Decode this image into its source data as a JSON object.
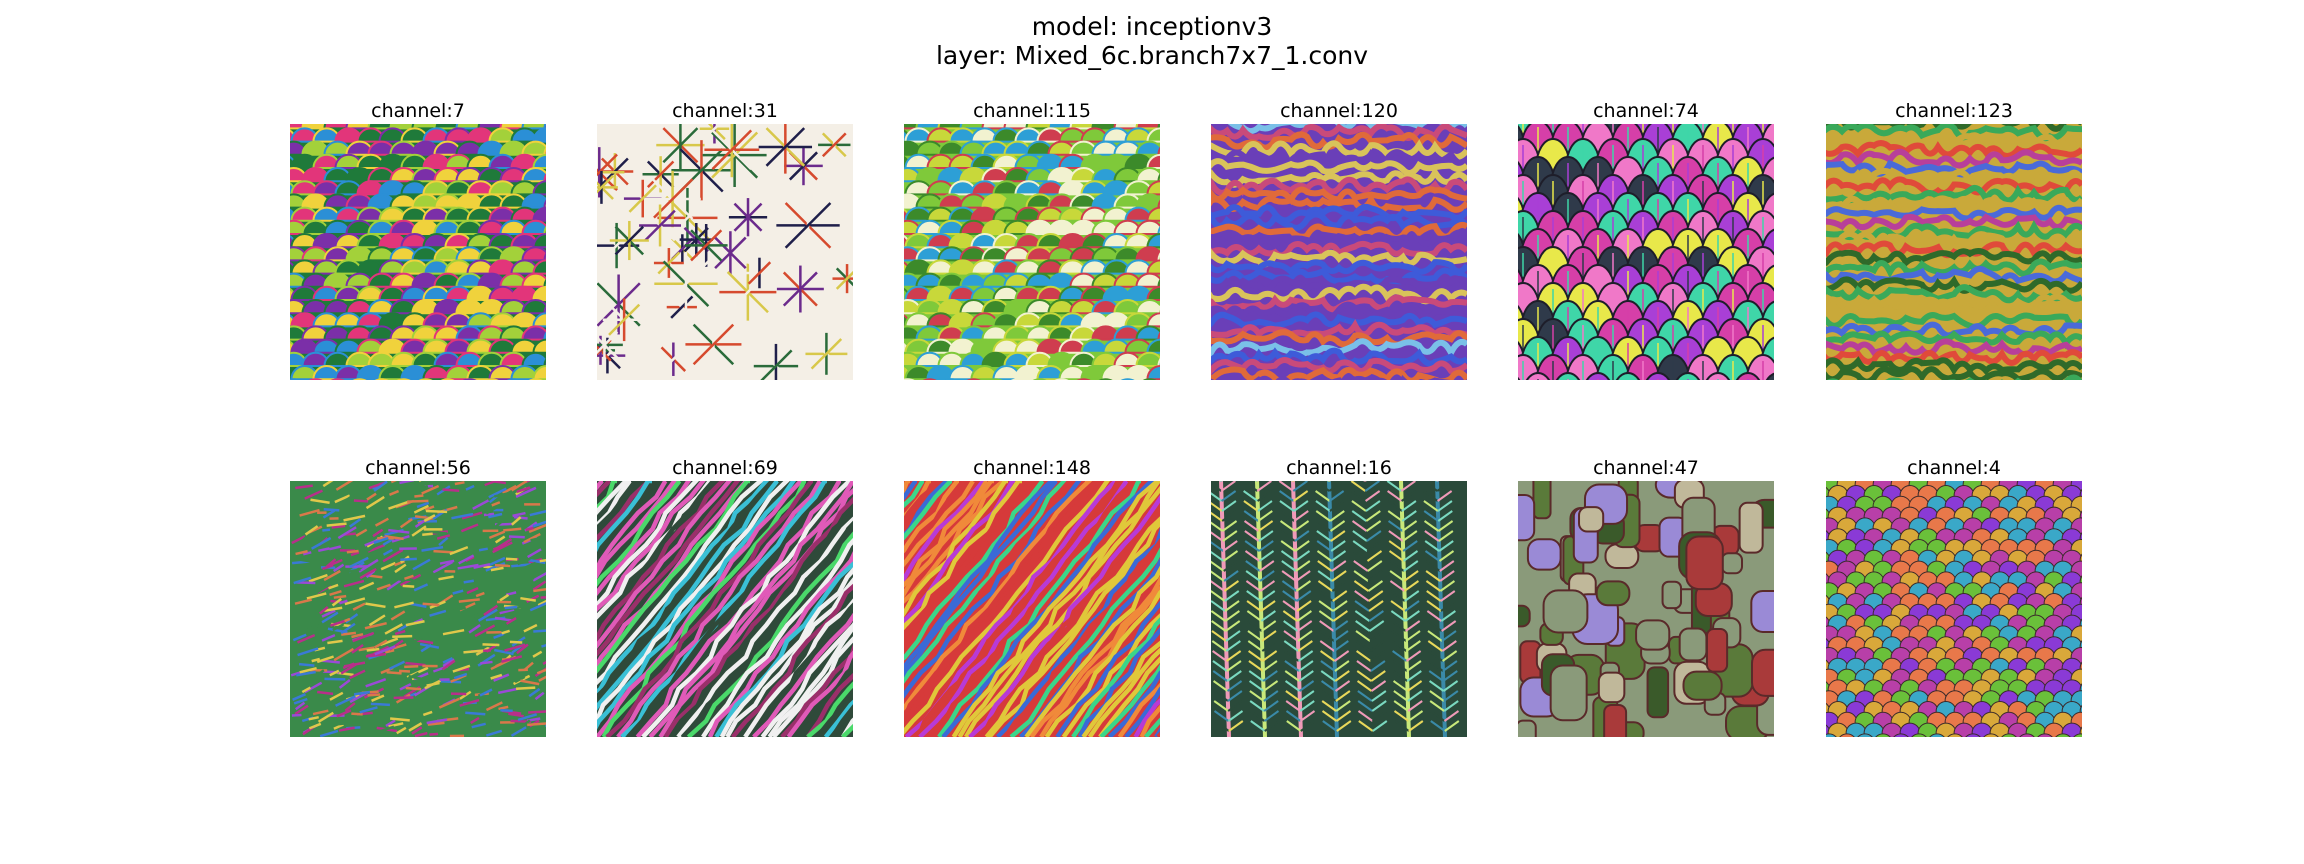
{
  "figure": {
    "title_line1": "model: inceptionv3",
    "title_line2": "layer: Mixed_6c.branch7x7_1.conv"
  },
  "panels": [
    {
      "label": "channel:7",
      "pattern": "scales",
      "colors": [
        "#1f7a3a",
        "#e2357a",
        "#2b8fd6",
        "#f0d23c",
        "#a3d13a",
        "#7b2fa8"
      ]
    },
    {
      "label": "channel:31",
      "pattern": "star-lattice",
      "colors": [
        "#f4efe6",
        "#2a6b3a",
        "#6b2a8c",
        "#1f1f4a",
        "#d64a2e",
        "#d8c84a"
      ]
    },
    {
      "label": "channel:115",
      "pattern": "scales",
      "colors": [
        "#7fc93a",
        "#3c8a2a",
        "#f2f2d0",
        "#2d9fd6",
        "#cf3d4f",
        "#c8d83a"
      ]
    },
    {
      "label": "channel:120",
      "pattern": "waves",
      "colors": [
        "#6a3fb8",
        "#d9c35a",
        "#3e5bd9",
        "#c94a7a",
        "#7ac0e8",
        "#e06a3a"
      ]
    },
    {
      "label": "channel:74",
      "pattern": "leaves",
      "colors": [
        "#d63fa8",
        "#3fd6a8",
        "#a93fd6",
        "#2f3a4a",
        "#e8e84a",
        "#f078c8"
      ]
    },
    {
      "label": "channel:123",
      "pattern": "waves",
      "colors": [
        "#c9a93a",
        "#3aa95a",
        "#b83f9a",
        "#4a6ad9",
        "#e04a3a",
        "#2f6a2a"
      ]
    },
    {
      "label": "channel:56",
      "pattern": "fur",
      "colors": [
        "#3a8a4a",
        "#b82f8a",
        "#e0c84a",
        "#3a7ad6",
        "#9a4ad6",
        "#d9784a"
      ]
    },
    {
      "label": "channel:69",
      "pattern": "diagonal",
      "colors": [
        "#2f4a3a",
        "#e05ab8",
        "#4ad96a",
        "#f0f0f0",
        "#9a2f6a",
        "#3ac0d6"
      ]
    },
    {
      "label": "channel:148",
      "pattern": "diagonal",
      "colors": [
        "#d63a3a",
        "#3a6ad6",
        "#e0c83a",
        "#3ad68a",
        "#b83ad6",
        "#f08a3a"
      ]
    },
    {
      "label": "channel:16",
      "pattern": "sprigs",
      "colors": [
        "#2a4a3a",
        "#e8d85a",
        "#7ad9c0",
        "#f09ab8",
        "#c8e87a",
        "#3a8aa8"
      ]
    },
    {
      "label": "channel:47",
      "pattern": "blocks",
      "colors": [
        "#8a9a7a",
        "#a93a3a",
        "#5a7a3a",
        "#9a8ad6",
        "#c0b89a",
        "#3a5a2a"
      ]
    },
    {
      "label": "channel:4",
      "pattern": "beads",
      "colors": [
        "#d9a83a",
        "#b83fa8",
        "#6ac03a",
        "#e8784a",
        "#8a3ad6",
        "#3aa8c8"
      ]
    }
  ]
}
